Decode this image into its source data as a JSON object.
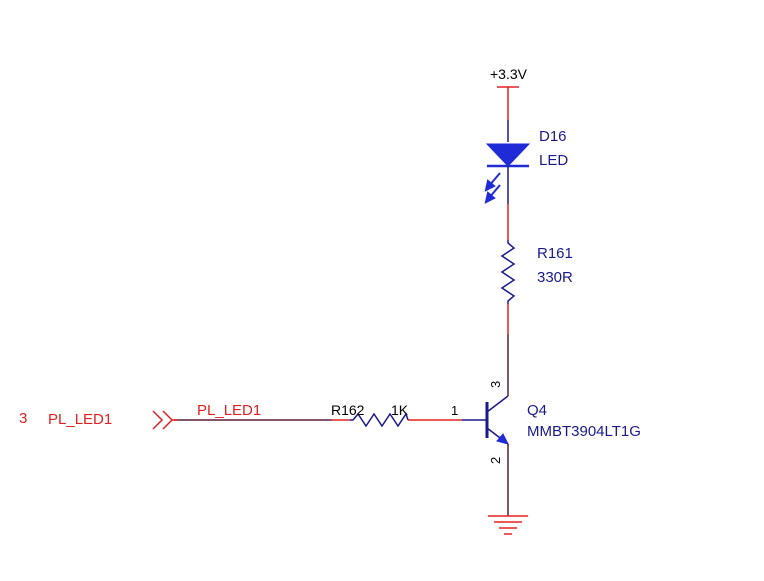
{
  "power": {
    "label": "+3.3V"
  },
  "led": {
    "ref": "D16",
    "value": "LED"
  },
  "r161": {
    "ref": "R161",
    "value": "330R"
  },
  "r162": {
    "ref": "R162",
    "value": "1K"
  },
  "transistor": {
    "ref": "Q4",
    "part": "MMBT3904LT1G",
    "pins": {
      "base": "1",
      "emitter": "2",
      "collector": "3"
    }
  },
  "port": {
    "sheet": "3",
    "name": "PL_LED1"
  },
  "net": {
    "name": "PL_LED1"
  },
  "colors": {
    "wire": "#e32020",
    "component": "#1a1a8c",
    "led_fill": "#1f2bd6",
    "bus_wire": "#5a1f3a",
    "text_blue": "#1a1a8c",
    "text_red": "#e32020"
  }
}
